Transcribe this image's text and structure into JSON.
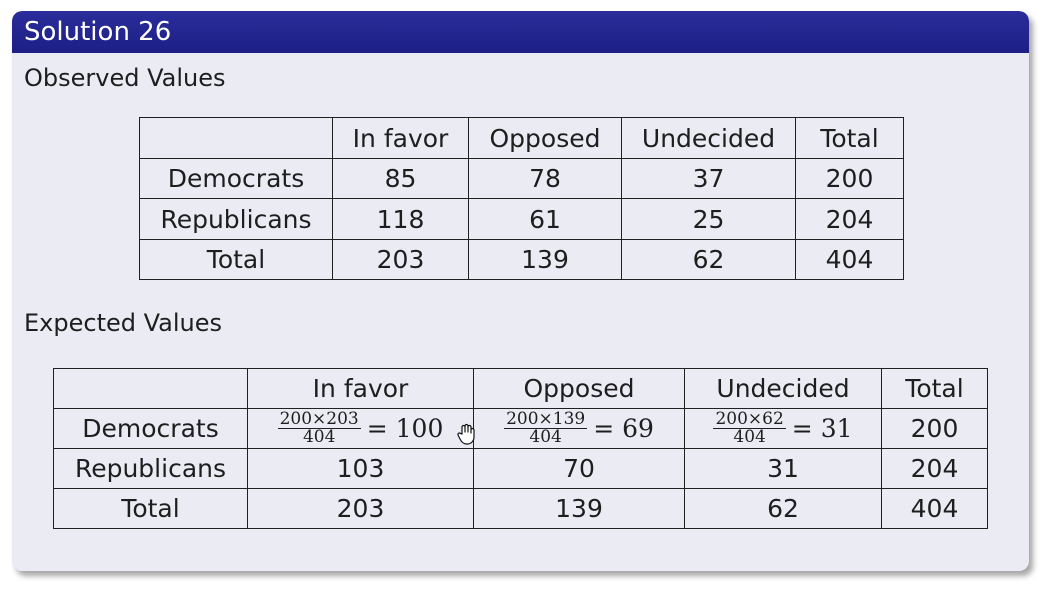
{
  "slide": {
    "title": "Solution 26",
    "observed_heading": "Observed Values",
    "expected_heading": "Expected Values"
  },
  "observed": {
    "headers": [
      "",
      "In favor",
      "Opposed",
      "Undecided",
      "Total"
    ],
    "rows": [
      [
        "Democrats",
        "85",
        "78",
        "37",
        "200"
      ],
      [
        "Republicans",
        "118",
        "61",
        "25",
        "204"
      ],
      [
        "Total",
        "203",
        "139",
        "62",
        "404"
      ]
    ]
  },
  "expected": {
    "headers": [
      "",
      "In favor",
      "Opposed",
      "Undecided",
      "Total"
    ],
    "democrats": {
      "label": "Democrats",
      "in_favor": {
        "num": "200×203",
        "den": "404",
        "result": "= 100"
      },
      "opposed": {
        "num": "200×139",
        "den": "404",
        "result": "= 69"
      },
      "undecided": {
        "num": "200×62",
        "den": "404",
        "result": "= 31"
      },
      "total": "200"
    },
    "rows": [
      [
        "Republicans",
        "103",
        "70",
        "31",
        "204"
      ],
      [
        "Total",
        "203",
        "139",
        "62",
        "404"
      ]
    ]
  },
  "icons": {
    "cursor": "hand-pointer-icon"
  }
}
